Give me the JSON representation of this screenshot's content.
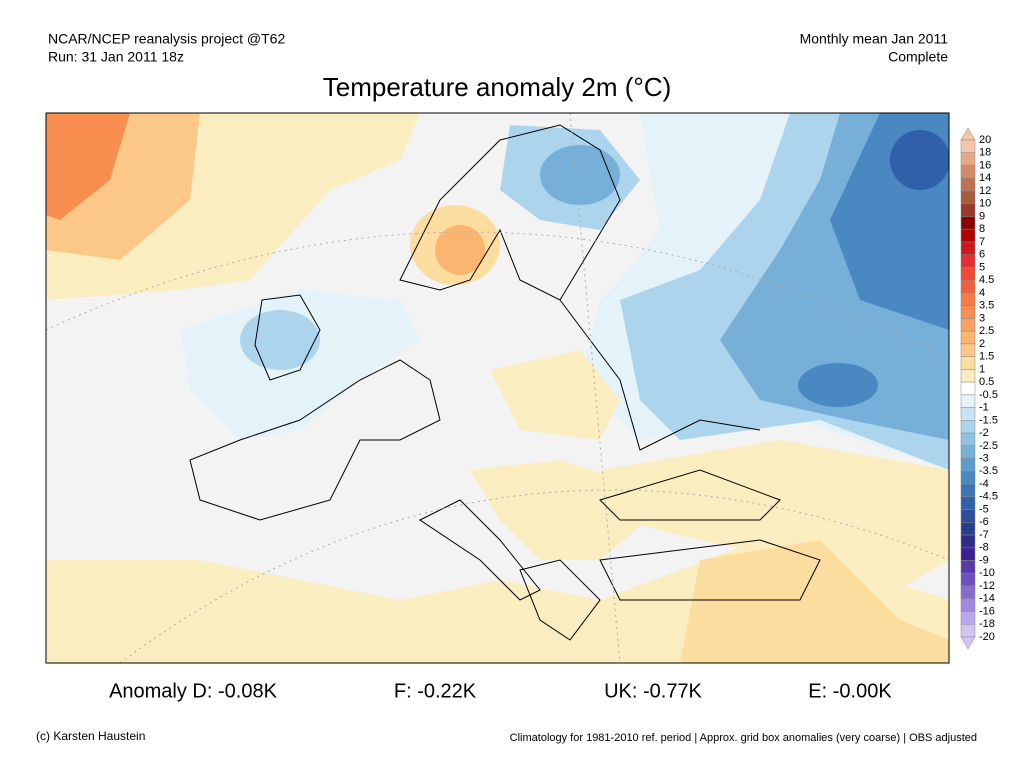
{
  "header": {
    "left_lines": [
      "NCAR/NCEP reanalysis project @T62",
      "Run: 31 Jan 2011 18z"
    ],
    "right_lines": [
      "Monthly mean Jan 2011",
      "Complete"
    ],
    "title": "Temperature anomaly 2m (°C)"
  },
  "colorbar": {
    "labels": [
      "20",
      "18",
      "16",
      "14",
      "12",
      "10",
      "9",
      "8",
      "7",
      "6",
      "5",
      "4.5",
      "4",
      "3.5",
      "3",
      "2.5",
      "2",
      "1.5",
      "1",
      "0.5",
      "-0.5",
      "-1",
      "-1.5",
      "-2",
      "-2.5",
      "-3",
      "-3.5",
      "-4",
      "-4.5",
      "-5",
      "-6",
      "-7",
      "-8",
      "-9",
      "-10",
      "-12",
      "-14",
      "-16",
      "-18",
      "-20"
    ],
    "colors": [
      "#f5c5a8",
      "#e8a888",
      "#d48a6a",
      "#c07050",
      "#a85a3a",
      "#963c28",
      "#8b0000",
      "#b00000",
      "#cc1a1a",
      "#e03030",
      "#ee4a3a",
      "#f0603a",
      "#f57a45",
      "#f88e50",
      "#faa060",
      "#fbb570",
      "#fcc888",
      "#fcdda0",
      "#faedc0",
      "#ffffff",
      "#e4f2fa",
      "#c8e4f4",
      "#acd4ec",
      "#90c2e2",
      "#76afd8",
      "#5e9ccd",
      "#4a88c2",
      "#3c74b6",
      "#3060aa",
      "#2a4e9e",
      "#283c90",
      "#302a88",
      "#3c2090",
      "#5a3aa8",
      "#7050c0",
      "#8a6ad0",
      "#a288de",
      "#baa6ea",
      "#d2c4f4"
    ]
  },
  "anomalies": [
    "Anomaly D: -0.08K",
    "F: -0.22K",
    "UK: -0.77K",
    "E: -0.00K"
  ],
  "footer": {
    "credit": "(c) Karsten Haustein",
    "note": "Climatology for 1981-2010 ref. period | Approx. grid box anomalies (very coarse) | OBS adjusted"
  }
}
